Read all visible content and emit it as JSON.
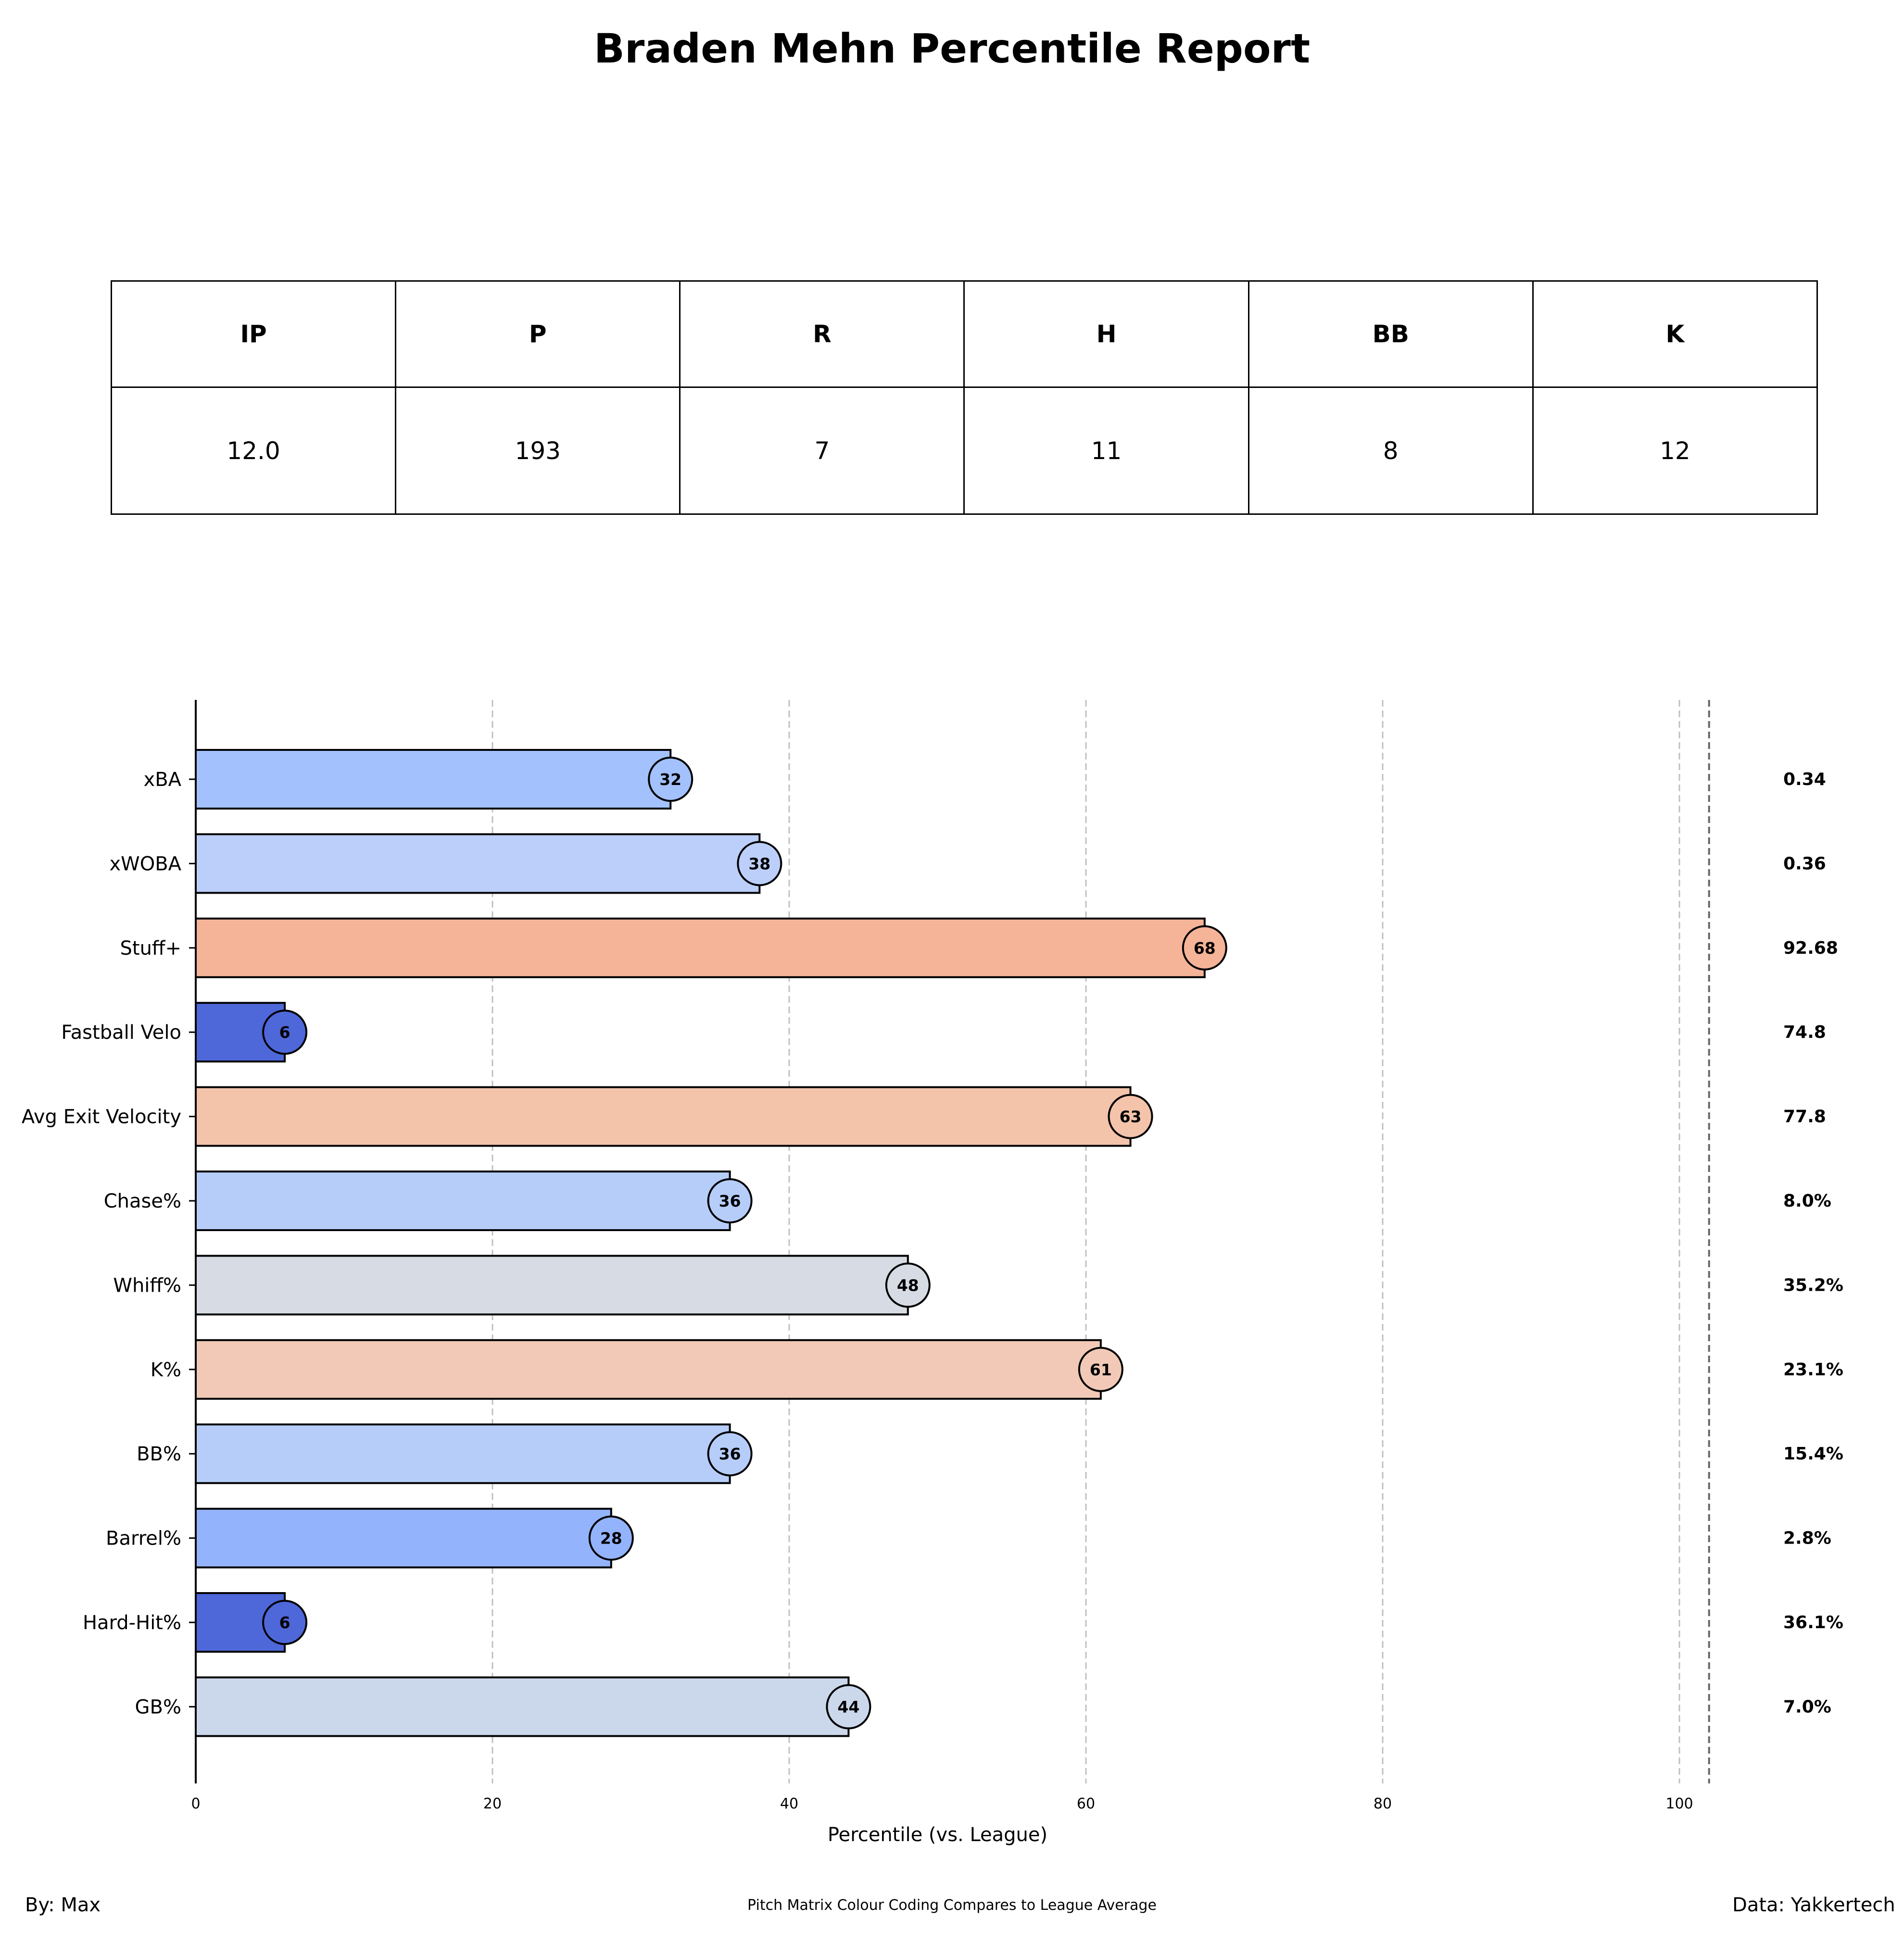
{
  "title": "Braden Mehn Percentile Report",
  "stats_table": {
    "headers": [
      "IP",
      "P",
      "R",
      "H",
      "BB",
      "K"
    ],
    "values": [
      "12.0",
      "193",
      "7",
      "11",
      "8",
      "12"
    ]
  },
  "chart_data": {
    "type": "bar",
    "orientation": "horizontal",
    "categories": [
      "xBA",
      "xWOBA",
      "Stuff+",
      "Fastball Velo",
      "Avg Exit Velocity",
      "Chase%",
      "Whiff%",
      "K%",
      "BB%",
      "Barrel%",
      "Hard-Hit%",
      "GB%"
    ],
    "values": [
      32,
      38,
      68,
      6,
      63,
      36,
      48,
      61,
      36,
      28,
      6,
      44
    ],
    "value_labels": [
      "32",
      "38",
      "68",
      "6",
      "63",
      "36",
      "48",
      "61",
      "36",
      "28",
      "6",
      "44"
    ],
    "stat_values": [
      "0.34",
      "0.36",
      "92.68",
      "74.8",
      "77.8",
      "8.0%",
      "35.2%",
      "23.1%",
      "15.4%",
      "2.8%",
      "36.1%",
      "7.0%"
    ],
    "colors": [
      "#a3c1fc",
      "#bccffa",
      "#f5b398",
      "#4e67d9",
      "#f3c3aa",
      "#b6cdfa",
      "#d7dce4",
      "#f1c9b6",
      "#b6cdfa",
      "#94b3fd",
      "#4e67d9",
      "#cbd8ec"
    ],
    "xlabel": "Percentile (vs. League)",
    "xlim": [
      0,
      102
    ],
    "xticks": [
      0,
      20,
      40,
      60,
      80,
      100
    ],
    "grid": "vertical dashed"
  },
  "footer": {
    "left": "By: Max",
    "center": "Pitch Matrix Colour Coding Compares to League Average",
    "right": "Data: Yakkertech"
  }
}
